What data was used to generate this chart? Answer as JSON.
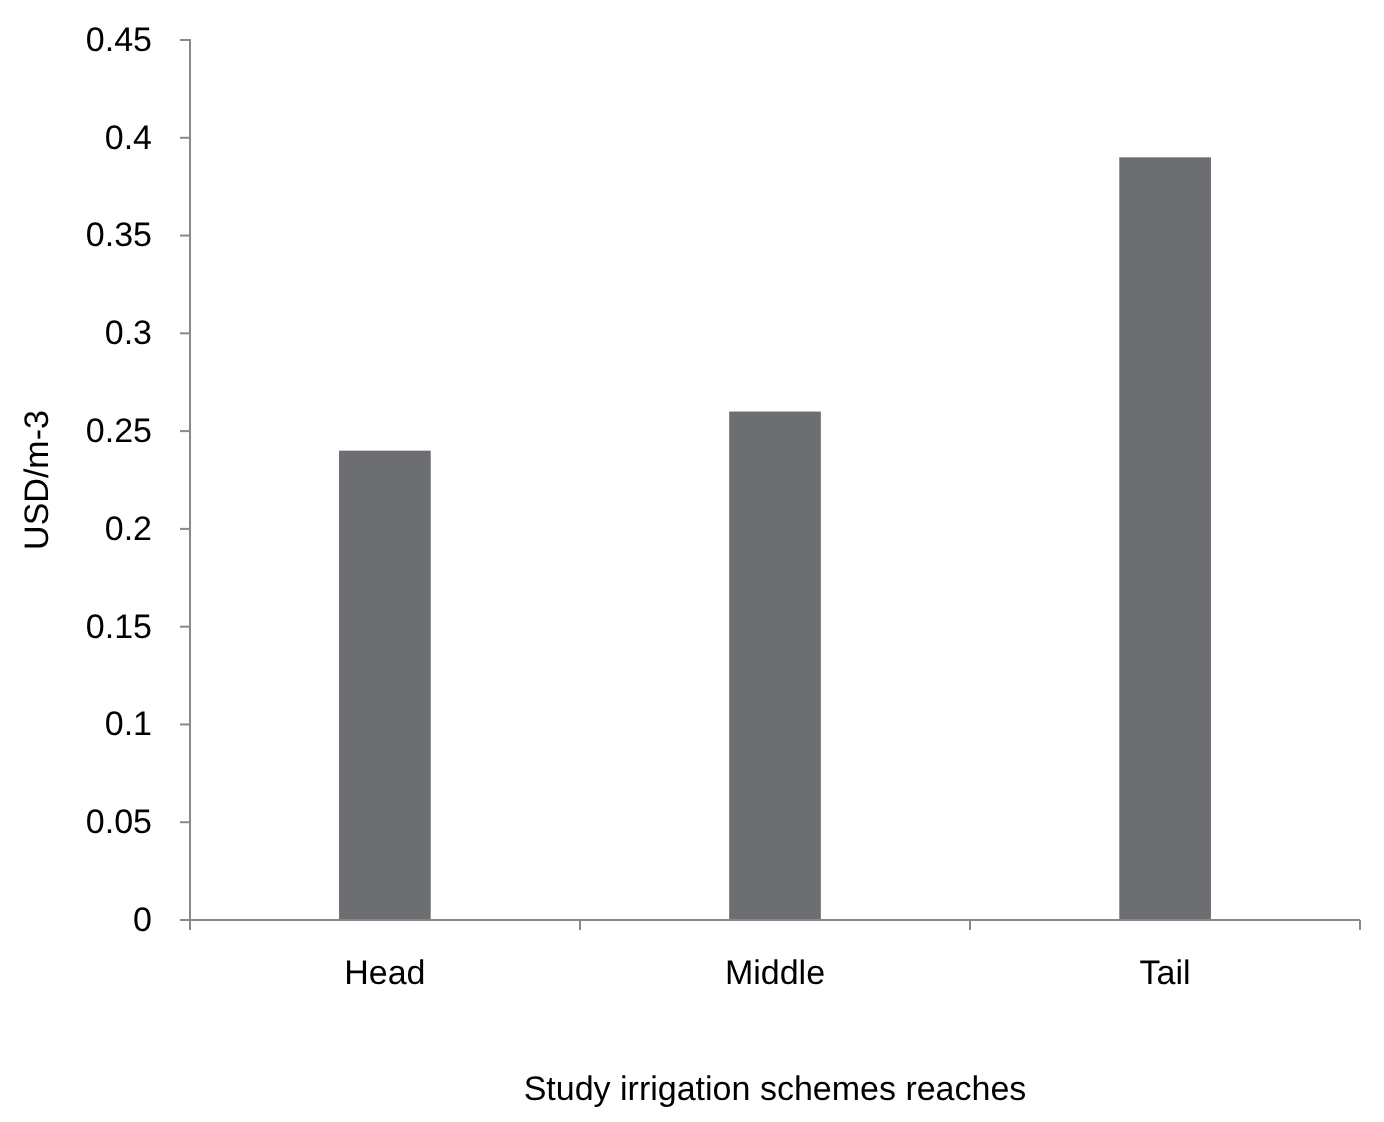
{
  "chart_data": {
    "type": "bar",
    "xlabel": "Study irrigation schemes reaches",
    "ylabel": "USD/m-3",
    "categories": [
      "Head",
      "Middle",
      "Tail"
    ],
    "values": [
      0.24,
      0.26,
      0.39
    ],
    "color": "#6d6e71",
    "ylim": [
      0,
      0.45
    ],
    "yticks": [
      0,
      0.05,
      0.1,
      0.15,
      0.2,
      0.25,
      0.3,
      0.35,
      0.4,
      0.45
    ],
    "grid": false
  }
}
